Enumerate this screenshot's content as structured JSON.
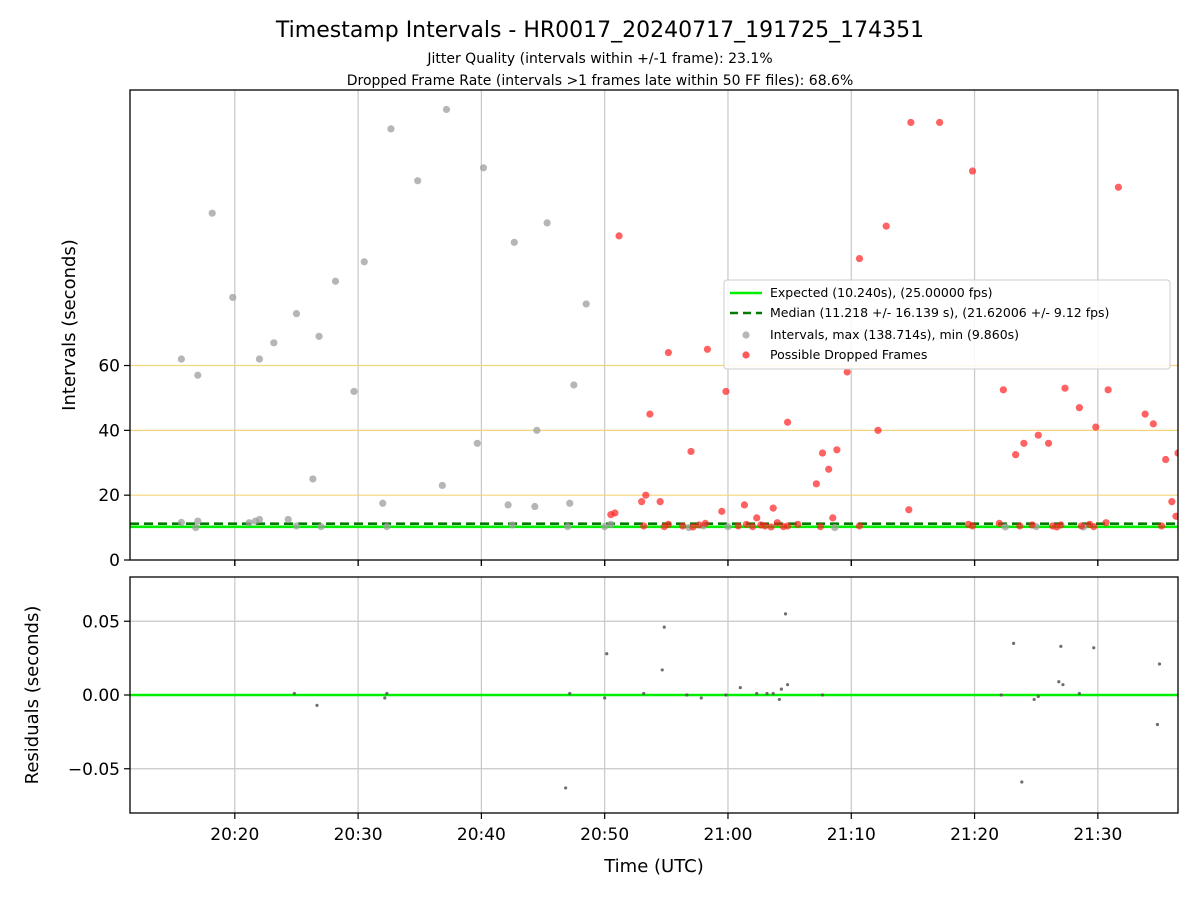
{
  "chart_data": [
    {
      "type": "scatter",
      "title": "Timestamp Intervals - HR0017_20240717_191725_174351",
      "subtitle_lines": [
        "Jitter Quality (intervals within +/-1 frame): 23.1%",
        "Dropped Frame Rate (intervals >1 frames late within 50 FF files): 68.6%"
      ],
      "ylabel": "Intervals (seconds)",
      "xlabel": "",
      "xlim": [
        "20:11:30",
        "21:36:30"
      ],
      "ylim": [
        0,
        145
      ],
      "yticks": [
        0,
        20,
        40,
        60
      ],
      "ytick_labels": [
        "0",
        "20",
        "40",
        "60"
      ],
      "xticks": [
        "20:20",
        "20:30",
        "20:40",
        "20:50",
        "21:00",
        "21:10",
        "21:20",
        "21:30"
      ],
      "grid": "vertical",
      "reference_lines": [
        20,
        40,
        60
      ],
      "colors": {
        "expected": "#00ee00",
        "median": "#007a00",
        "intervals": "#9e9e9e",
        "dropped": "#ff2020",
        "reference": "#f5d57a"
      },
      "legend_position": "center-right",
      "series": [
        {
          "name": "Expected (10.240s), (25.00000 fps)",
          "kind": "hline",
          "y": 10.24
        },
        {
          "name": "Median (11.218 +/- 16.139 s), (21.62006 +/- 9.12 fps)",
          "kind": "hline-dashed",
          "y": 11.218
        },
        {
          "name": "Intervals, max (138.714s), min (9.860s)",
          "kind": "points",
          "points": [
            [
              "20:15:40",
              62
            ],
            [
              "20:17:00",
              57
            ],
            [
              "20:18:10",
              107
            ],
            [
              "20:19:50",
              81
            ],
            [
              "20:22:00",
              62
            ],
            [
              "20:23:10",
              67
            ],
            [
              "20:25:00",
              76
            ],
            [
              "20:26:50",
              69
            ],
            [
              "20:28:10",
              86
            ],
            [
              "20:29:40",
              52
            ],
            [
              "20:30:30",
              92
            ],
            [
              "20:32:40",
              133
            ],
            [
              "20:34:50",
              117
            ],
            [
              "20:37:10",
              139
            ],
            [
              "20:40:10",
              121
            ],
            [
              "20:42:40",
              98
            ],
            [
              "20:45:20",
              104
            ],
            [
              "20:48:30",
              79
            ],
            [
              "20:47:30",
              54
            ],
            [
              "20:39:40",
              36
            ],
            [
              "20:44:30",
              40
            ],
            [
              "20:36:50",
              23
            ],
            [
              "20:26:20",
              25
            ],
            [
              "20:32:00",
              17.5
            ],
            [
              "20:42:10",
              17
            ],
            [
              "20:44:20",
              16.5
            ],
            [
              "20:47:10",
              17.5
            ],
            [
              "20:15:40",
              11.6
            ],
            [
              "20:16:50",
              10
            ],
            [
              "20:17:00",
              12
            ],
            [
              "20:21:10",
              11.5
            ],
            [
              "20:21:40",
              12
            ],
            [
              "20:22:00",
              12.5
            ],
            [
              "20:24:20",
              12.5
            ],
            [
              "20:25:00",
              10.5
            ],
            [
              "20:27:00",
              10.3
            ],
            [
              "20:32:20",
              10.3
            ],
            [
              "20:42:30",
              10.8
            ],
            [
              "20:47:00",
              10.3
            ],
            [
              "20:50:00",
              10.3
            ],
            [
              "20:50:30",
              11
            ],
            [
              "20:56:50",
              10
            ],
            [
              "20:58:00",
              10.5
            ],
            [
              "21:00:00",
              10.3
            ],
            [
              "21:08:40",
              10
            ],
            [
              "21:22:30",
              10.2
            ],
            [
              "21:25:00",
              10.3
            ],
            [
              "21:28:50",
              10.2
            ]
          ]
        },
        {
          "name": "Possible Dropped Frames",
          "kind": "points",
          "points": [
            [
              "20:51:10",
              100
            ],
            [
              "20:55:10",
              64
            ],
            [
              "20:58:20",
              65
            ],
            [
              "20:53:40",
              45
            ],
            [
              "20:57:00",
              33.5
            ],
            [
              "20:59:50",
              52
            ],
            [
              "21:04:50",
              42.5
            ],
            [
              "21:07:10",
              23.5
            ],
            [
              "21:07:40",
              33
            ],
            [
              "21:08:10",
              28
            ],
            [
              "21:08:50",
              34
            ],
            [
              "21:09:40",
              58
            ],
            [
              "21:10:40",
              93
            ],
            [
              "21:12:10",
              40
            ],
            [
              "21:12:50",
              103
            ],
            [
              "21:14:50",
              135
            ],
            [
              "21:17:10",
              135
            ],
            [
              "21:19:50",
              120
            ],
            [
              "21:22:20",
              52.5
            ],
            [
              "21:23:20",
              32.5
            ],
            [
              "21:24:00",
              36
            ],
            [
              "21:25:10",
              38.5
            ],
            [
              "21:26:00",
              36
            ],
            [
              "21:27:20",
              53
            ],
            [
              "21:28:30",
              47
            ],
            [
              "21:29:50",
              41
            ],
            [
              "21:30:50",
              52.5
            ],
            [
              "21:31:40",
              115
            ],
            [
              "21:33:50",
              45
            ],
            [
              "21:34:30",
              42
            ],
            [
              "21:35:30",
              31
            ],
            [
              "21:36:00",
              18
            ],
            [
              "21:36:20",
              13.5
            ],
            [
              "21:36:30",
              33
            ],
            [
              "20:50:30",
              14
            ],
            [
              "20:50:50",
              14.5
            ],
            [
              "20:53:00",
              18
            ],
            [
              "20:53:20",
              20
            ],
            [
              "20:54:30",
              18
            ],
            [
              "20:59:30",
              15
            ],
            [
              "21:01:20",
              17
            ],
            [
              "21:02:20",
              13
            ],
            [
              "21:03:40",
              16
            ],
            [
              "21:08:30",
              13
            ],
            [
              "21:14:40",
              15.5
            ],
            [
              "20:53:10",
              10.5
            ],
            [
              "20:54:50",
              10.3
            ],
            [
              "20:55:10",
              11
            ],
            [
              "20:56:20",
              10.5
            ],
            [
              "20:57:10",
              10.2
            ],
            [
              "20:57:40",
              10.8
            ],
            [
              "20:58:10",
              11.3
            ],
            [
              "21:00:50",
              10.5
            ],
            [
              "21:01:30",
              11
            ],
            [
              "21:02:00",
              10.3
            ],
            [
              "21:02:40",
              10.8
            ],
            [
              "21:03:00",
              10.5
            ],
            [
              "21:03:30",
              10.2
            ],
            [
              "21:04:00",
              11.5
            ],
            [
              "21:04:30",
              10.3
            ],
            [
              "21:04:50",
              10.5
            ],
            [
              "21:05:40",
              11
            ],
            [
              "21:07:30",
              10.3
            ],
            [
              "21:10:40",
              10.5
            ],
            [
              "21:19:30",
              11
            ],
            [
              "21:19:50",
              10.5
            ],
            [
              "21:22:00",
              11.3
            ],
            [
              "21:23:40",
              10.5
            ],
            [
              "21:24:40",
              10.8
            ],
            [
              "21:26:20",
              10.5
            ],
            [
              "21:26:40",
              10.2
            ],
            [
              "21:27:00",
              10.8
            ],
            [
              "21:28:40",
              10.5
            ],
            [
              "21:29:20",
              11
            ],
            [
              "21:29:40",
              10.3
            ],
            [
              "21:30:40",
              11.5
            ],
            [
              "21:35:10",
              10.5
            ]
          ]
        }
      ]
    },
    {
      "type": "scatter",
      "title": "",
      "ylabel": "Residuals (seconds)",
      "xlabel": "Time (UTC)",
      "xlim": [
        "20:11:30",
        "21:36:30"
      ],
      "ylim": [
        -0.08,
        0.08
      ],
      "yticks": [
        0.05,
        0.0,
        -0.05
      ],
      "ytick_labels": [
        "0.05",
        "0.00",
        "−0.05"
      ],
      "xticks": [
        "20:20",
        "20:30",
        "20:40",
        "20:50",
        "21:00",
        "21:10",
        "21:20",
        "21:30"
      ],
      "xtick_labels": [
        "20:20",
        "20:30",
        "20:40",
        "20:50",
        "21:00",
        "21:10",
        "21:20",
        "21:30"
      ],
      "grid": "both",
      "colors": {
        "zero_line": "#00ee00",
        "points": "#555555"
      },
      "series": [
        {
          "name": "",
          "kind": "hline",
          "y": 0.0
        },
        {
          "name": "",
          "kind": "points",
          "points": [
            [
              "20:24:50",
              0.001
            ],
            [
              "20:26:40",
              -0.007
            ],
            [
              "20:32:10",
              -0.002
            ],
            [
              "20:32:20",
              0.001
            ],
            [
              "20:46:50",
              -0.063
            ],
            [
              "20:47:10",
              0.001
            ],
            [
              "20:50:00",
              -0.002
            ],
            [
              "20:50:10",
              0.028
            ],
            [
              "20:53:10",
              0.001
            ],
            [
              "20:54:40",
              0.017
            ],
            [
              "20:54:50",
              0.046
            ],
            [
              "20:56:40",
              0.0
            ],
            [
              "20:57:50",
              -0.002
            ],
            [
              "20:59:50",
              0.0
            ],
            [
              "21:01:00",
              0.005
            ],
            [
              "21:02:20",
              0.001
            ],
            [
              "21:03:10",
              0.001
            ],
            [
              "21:03:40",
              0.001
            ],
            [
              "21:04:10",
              -0.003
            ],
            [
              "21:04:20",
              0.004
            ],
            [
              "21:04:40",
              0.055
            ],
            [
              "21:04:50",
              0.007
            ],
            [
              "21:07:40",
              0.0
            ],
            [
              "21:22:10",
              0.0
            ],
            [
              "21:23:10",
              0.035
            ],
            [
              "21:23:50",
              -0.059
            ],
            [
              "21:24:50",
              -0.003
            ],
            [
              "21:25:10",
              -0.001
            ],
            [
              "21:26:50",
              0.009
            ],
            [
              "21:27:00",
              0.033
            ],
            [
              "21:27:10",
              0.007
            ],
            [
              "21:28:30",
              0.001
            ],
            [
              "21:29:40",
              0.032
            ],
            [
              "21:34:50",
              -0.02
            ],
            [
              "21:35:00",
              0.021
            ]
          ]
        }
      ]
    }
  ]
}
